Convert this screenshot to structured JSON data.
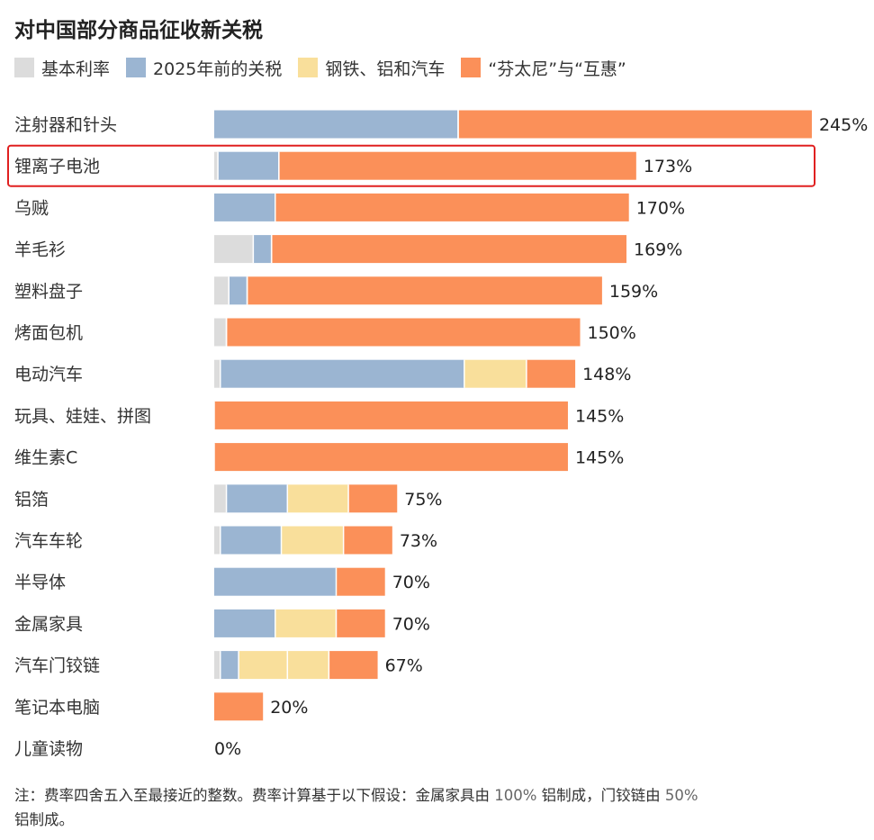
{
  "title": "对中国部分商品征收新关税",
  "legend": [
    {
      "label": "基本利率",
      "color": "#dcdcdc"
    },
    {
      "label": "2025年前的关税",
      "color": "#9bb5d2"
    },
    {
      "label": "钢铁、铝和汽车",
      "color": "#f9df9b"
    },
    {
      "label": "“芬太尼”与“互惠”",
      "color": "#fb9059"
    }
  ],
  "note": {
    "part1": "注：费率四舍五入至最接近的整数。费率计算基于以下假设：金属家具由 ",
    "num1": "100%",
    "part2": " 铝制成，门铰链由 ",
    "num2": "50%",
    "part3": "铝制成。"
  },
  "chart_data": {
    "type": "bar",
    "orientation": "horizontal",
    "stacked": true,
    "categories": [
      "注射器和针头",
      "锂离子电池",
      "乌贼",
      "羊毛衫",
      "塑料盘子",
      "烤面包机",
      "电动汽车",
      "玩具、娃娃、拼图",
      "维生素C",
      "铝箔",
      "汽车车轮",
      "半导体",
      "金属家具",
      "汽车门铰链",
      "笔记本电脑",
      "儿童读物"
    ],
    "series": [
      {
        "name": "基本利率",
        "color": "#dcdcdc",
        "values": [
          0,
          1.5,
          0,
          16,
          6,
          5,
          2.5,
          0,
          0,
          5,
          2.5,
          0,
          0,
          2.5,
          0,
          0
        ]
      },
      {
        "name": "2025年前的关税",
        "color": "#9bb5d2",
        "values": [
          100,
          25,
          25,
          7.5,
          7.5,
          0,
          100,
          0,
          0,
          25,
          25,
          50,
          25,
          7.5,
          0,
          0
        ]
      },
      {
        "name": "钢铁、铝和汽车",
        "color": "#f9df9b",
        "values": [
          0,
          0,
          0,
          0,
          0,
          0,
          25.5,
          0,
          0,
          25,
          25.5,
          0,
          25,
          37,
          0,
          0
        ]
      },
      {
        "name": "“芬太尼”与“互惠”",
        "color": "#fb9059",
        "values": [
          145,
          146.5,
          145,
          145.5,
          145.5,
          145,
          20,
          145,
          145,
          20,
          20,
          20,
          20,
          20,
          20,
          0
        ]
      }
    ],
    "totals": [
      "245%",
      "173%",
      "170%",
      "169%",
      "159%",
      "150%",
      "148%",
      "145%",
      "145%",
      "75%",
      "73%",
      "70%",
      "70%",
      "67%",
      "20%",
      "0%"
    ],
    "segment_splits": [
      [
        145,
        20
      ],
      [
        146.5,
        20
      ],
      [
        145,
        20
      ],
      [
        145.5,
        20
      ],
      [
        145.5,
        20
      ],
      [
        145,
        20
      ],
      [],
      [
        145,
        20
      ],
      [
        145,
        20
      ],
      [],
      [],
      [],
      [],
      [
        37,
        18.5
      ],
      [],
      []
    ],
    "highlighted_category": "锂离子电池",
    "highlight_color": "#e02020",
    "xlim": [
      0,
      245
    ]
  }
}
